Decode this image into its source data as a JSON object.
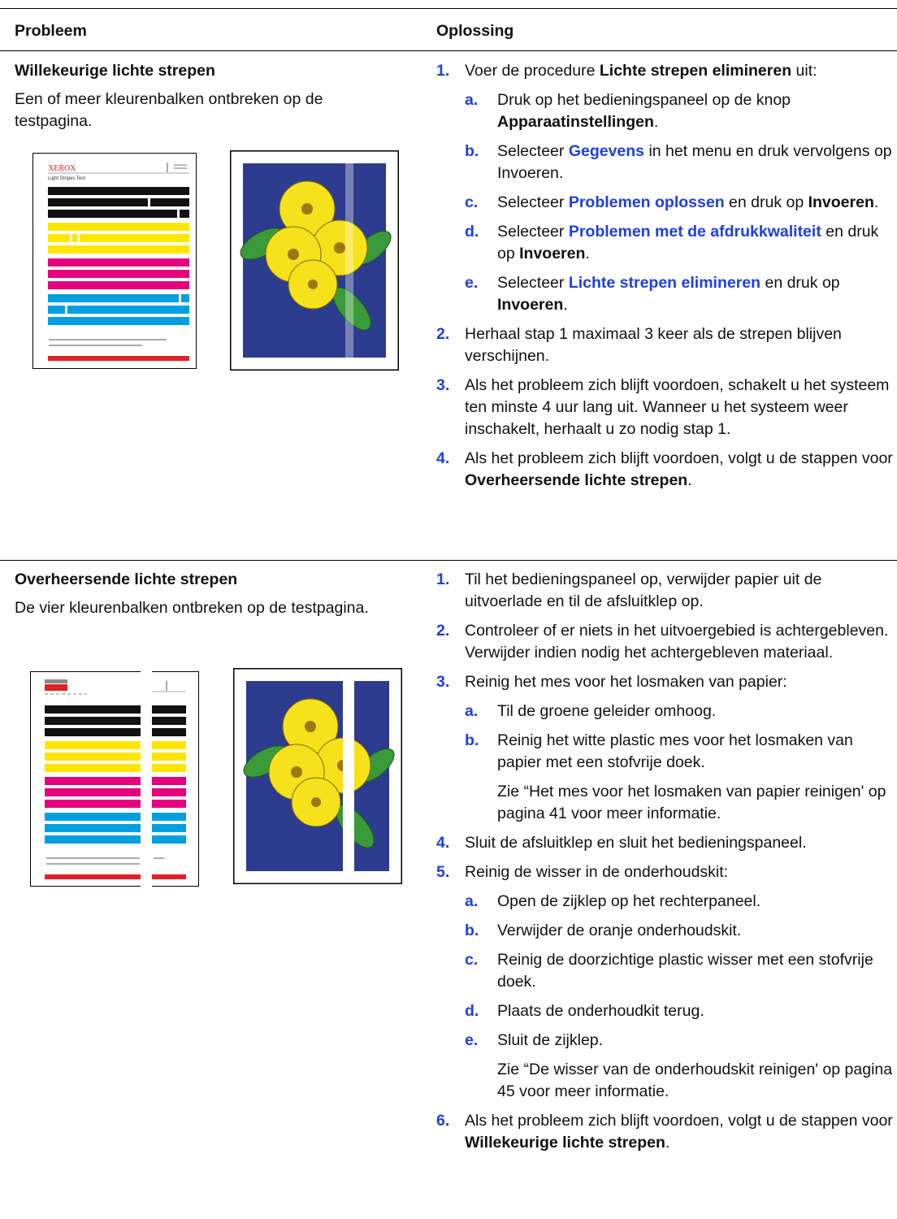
{
  "header": {
    "problem": "Probleem",
    "solution": "Oplossing"
  },
  "rows": [
    {
      "problem_title": "Willekeurige lichte strepen",
      "problem_text": "Een of meer kleurenbalken ontbreken op de testpagina.",
      "test_page_logo": "XEROX",
      "test_page_title": "Light Stripes Test",
      "steps": [
        {
          "number": "1.",
          "text": [
            "Voer de procedure ",
            {
              "text": "Lichte strepen elimineren",
              "style": "bold"
            },
            " uit:"
          ],
          "substeps": [
            {
              "letter": "a.",
              "text": [
                "Druk op het bedieningspaneel op de knop ",
                {
                  "text": "Apparaatinstellingen",
                  "style": "bold"
                },
                "."
              ]
            },
            {
              "letter": "b.",
              "text": [
                "Selecteer ",
                {
                  "text": "Gegevens",
                  "style": "link"
                },
                " in het menu en druk vervolgens op Invoeren."
              ]
            },
            {
              "letter": "c.",
              "text": [
                "Selecteer ",
                {
                  "text": "Problemen oplossen",
                  "style": "link"
                },
                " en druk op ",
                {
                  "text": "Invoeren",
                  "style": "bold"
                },
                "."
              ]
            },
            {
              "letter": "d.",
              "text": [
                "Selecteer ",
                {
                  "text": "Problemen met de afdrukkwaliteit",
                  "style": "link"
                },
                " en druk op ",
                {
                  "text": "Invoeren",
                  "style": "bold"
                },
                "."
              ]
            },
            {
              "letter": "e.",
              "text": [
                "Selecteer ",
                {
                  "text": "Lichte strepen elimineren",
                  "style": "link"
                },
                " en druk op ",
                {
                  "text": "Invoeren",
                  "style": "bold"
                },
                "."
              ]
            }
          ]
        },
        {
          "number": "2.",
          "text": [
            "Herhaal stap 1 maximaal 3 keer als de strepen blijven verschijnen."
          ]
        },
        {
          "number": "3.",
          "text": [
            "Als het probleem zich blijft voordoen, schakelt u het systeem ten minste 4 uur lang uit. Wanneer u het systeem weer inschakelt, herhaalt u zo nodig stap 1."
          ]
        },
        {
          "number": "4.",
          "text": [
            "Als het probleem zich blijft voordoen, volgt u de stappen voor ",
            {
              "text": "Overheersende lichte strepen",
              "style": "bold"
            },
            "."
          ]
        }
      ]
    },
    {
      "problem_title": "Overheersende lichte strepen",
      "problem_text": "De vier kleurenbalken ontbreken op de testpagina.",
      "steps": [
        {
          "number": "1.",
          "text": [
            "Til het bedieningspaneel op, verwijder papier uit de uitvoerlade en til de afsluitklep op."
          ]
        },
        {
          "number": "2.",
          "text": [
            "Controleer of er niets in het uitvoergebied is achtergebleven. Verwijder indien nodig het achtergebleven materiaal."
          ]
        },
        {
          "number": "3.",
          "text": [
            "Reinig het mes voor het losmaken van papier:"
          ],
          "substeps": [
            {
              "letter": "a.",
              "text": [
                "Til de groene geleider omhoog."
              ]
            },
            {
              "letter": "b.",
              "text": [
                "Reinig het witte plastic mes voor het losmaken van papier met een stofvrije doek."
              ]
            }
          ],
          "note": "Zie “Het mes voor het losmaken van papier reinigen' op pagina 41 voor meer informatie."
        },
        {
          "number": "4.",
          "text": [
            "Sluit de afsluitklep en sluit het bedieningspaneel."
          ]
        },
        {
          "number": "5.",
          "text": [
            "Reinig de wisser in de onderhoudskit:"
          ],
          "substeps": [
            {
              "letter": "a.",
              "text": [
                "Open de zijklep op het rechterpaneel."
              ]
            },
            {
              "letter": "b.",
              "text": [
                "Verwijder de oranje onderhoudskit."
              ]
            },
            {
              "letter": "c.",
              "text": [
                "Reinig de doorzichtige plastic wisser met een stofvrije doek."
              ]
            },
            {
              "letter": "d.",
              "text": [
                "Plaats de onderhoudkit terug."
              ]
            },
            {
              "letter": "e.",
              "text": [
                "Sluit de zijklep."
              ]
            }
          ],
          "note": "Zie “De wisser van de onderhoudskit reinigen' op pagina 45 voor meer informatie."
        },
        {
          "number": "6.",
          "text": [
            "Als het probleem zich blijft voordoen, volgt u de stappen voor ",
            {
              "text": "Willekeurige lichte strepen",
              "style": "bold"
            },
            "."
          ]
        }
      ]
    }
  ]
}
